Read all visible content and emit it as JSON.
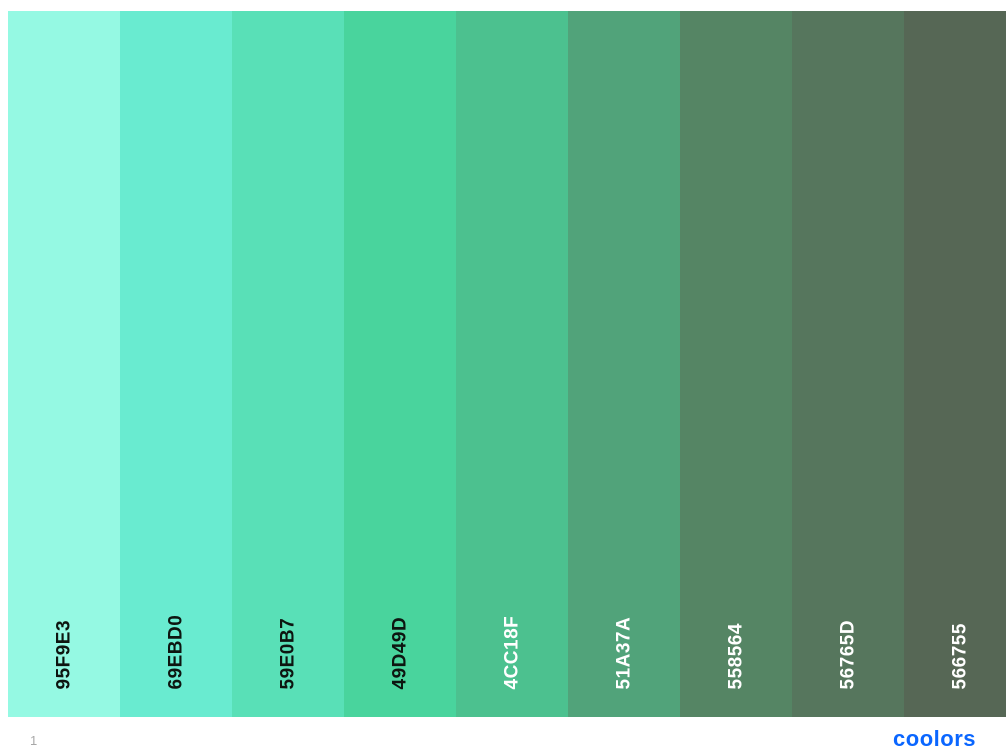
{
  "colors": {
    "dark_text": "#0d1510",
    "light_text": "#ffffff",
    "brand": "#0a66ff",
    "page_number": "#a8a8a8"
  },
  "palette": [
    {
      "hex": "95F9E3",
      "color": "#95F9E3",
      "text_tone": "dark"
    },
    {
      "hex": "69EBD0",
      "color": "#69EBD0",
      "text_tone": "dark"
    },
    {
      "hex": "59E0B7",
      "color": "#59E0B7",
      "text_tone": "dark"
    },
    {
      "hex": "49D49D",
      "color": "#49D49D",
      "text_tone": "dark"
    },
    {
      "hex": "4CC18F",
      "color": "#4CC18F",
      "text_tone": "light"
    },
    {
      "hex": "51A37A",
      "color": "#51A37A",
      "text_tone": "light"
    },
    {
      "hex": "558564",
      "color": "#558564",
      "text_tone": "light"
    },
    {
      "hex": "56765D",
      "color": "#56765D",
      "text_tone": "light"
    },
    {
      "hex": "566755",
      "color": "#566755",
      "text_tone": "light"
    }
  ],
  "footer": {
    "page_number": "1",
    "brand": "coolors"
  }
}
